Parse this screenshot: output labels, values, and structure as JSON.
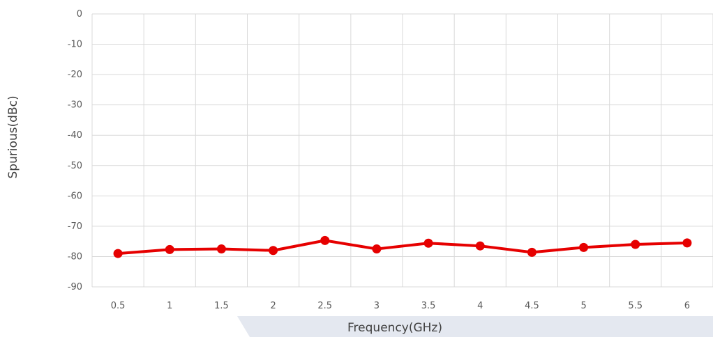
{
  "chart_data": {
    "type": "line",
    "title": "",
    "xlabel": "Frequency(GHz)",
    "ylabel": "Spurious(dBc)",
    "categories": [
      "0.5",
      "1",
      "1.5",
      "2",
      "2.5",
      "3",
      "3.5",
      "4",
      "4.5",
      "5",
      "5.5",
      "6"
    ],
    "ylim": [
      -90,
      0
    ],
    "yticks": [
      "0",
      "-10",
      "-20",
      "-30",
      "-40",
      "-50",
      "-60",
      "-70",
      "-80",
      "-90"
    ],
    "grid": true,
    "legend": "none",
    "series": [
      {
        "color": "#e60000",
        "values": [
          -79,
          -77.7,
          -77.5,
          -78,
          -74.7,
          -77.5,
          -75.6,
          -76.5,
          -78.6,
          -77,
          -76,
          -75.5
        ]
      }
    ]
  }
}
